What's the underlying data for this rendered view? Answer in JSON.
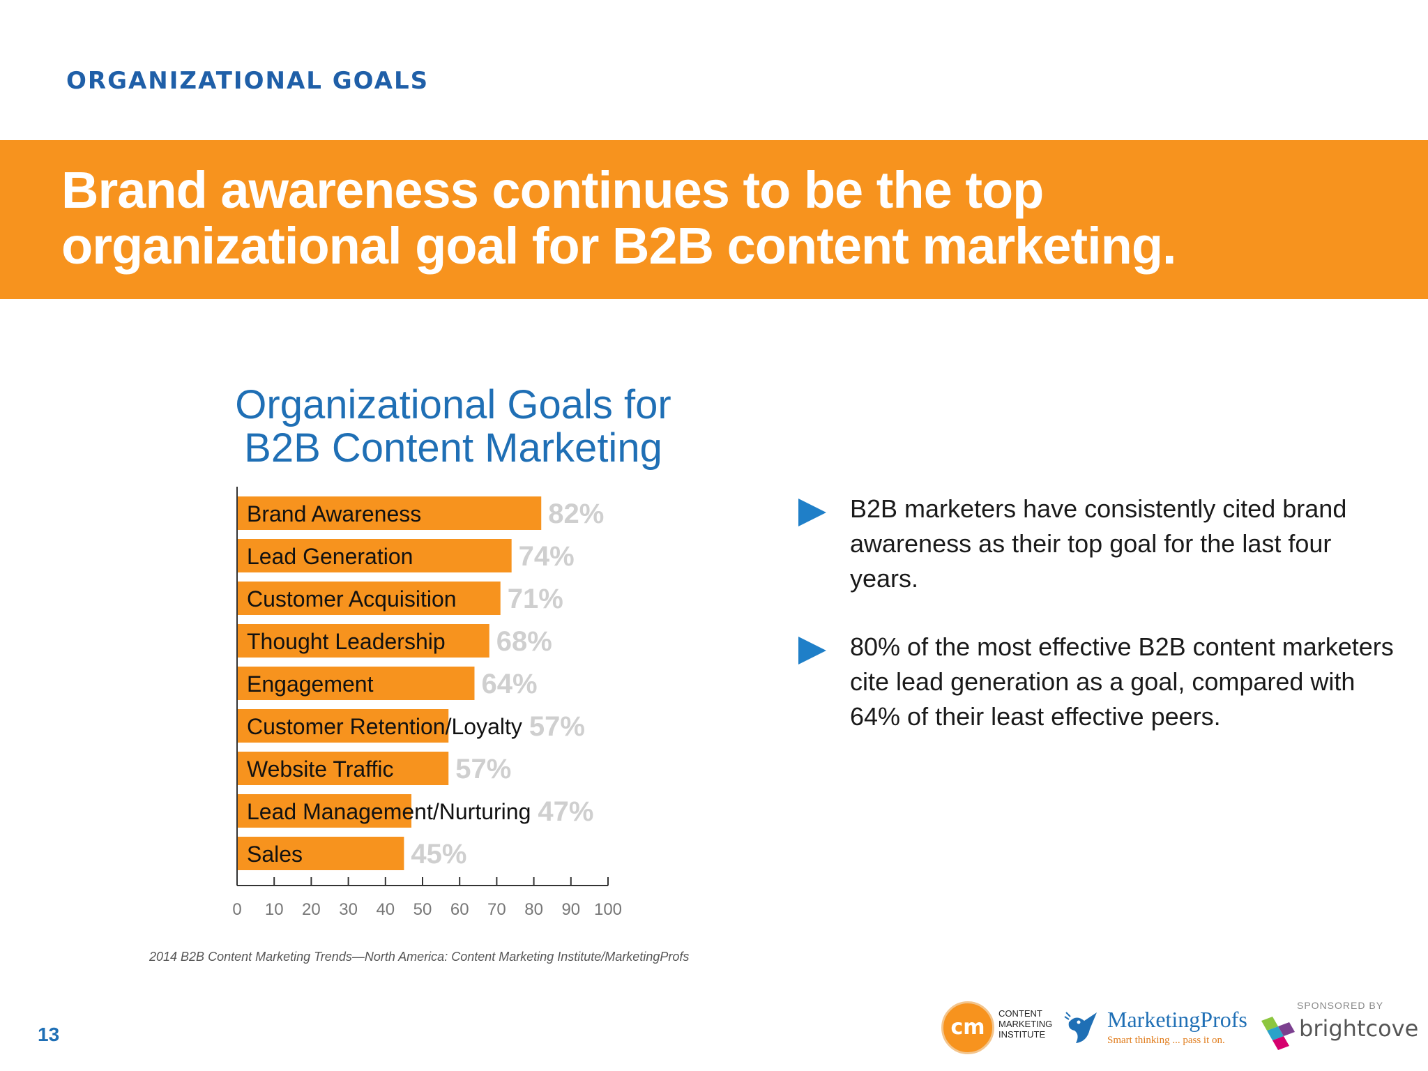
{
  "header": {
    "section_label": "ORGANIZATIONAL GOALS",
    "headline": "Brand awareness continues to be the top organizational goal for B2B content marketing."
  },
  "chart_data": {
    "type": "bar",
    "orientation": "horizontal",
    "title": "Organizational Goals for B2B Content Marketing",
    "title_lines": [
      "Organizational Goals for",
      "B2B Content Marketing"
    ],
    "categories": [
      "Brand Awareness",
      "Lead Generation",
      "Customer Acquisition",
      "Thought Leadership",
      "Engagement",
      "Customer Retention/Loyalty",
      "Website Traffic",
      "Lead Management/Nurturing",
      "Sales"
    ],
    "values": [
      82,
      74,
      71,
      68,
      64,
      57,
      57,
      47,
      45
    ],
    "value_labels": [
      "82%",
      "74%",
      "71%",
      "68%",
      "64%",
      "57%",
      "57%",
      "47%",
      "45%"
    ],
    "xlim": [
      0,
      100
    ],
    "x_ticks": [
      "0",
      "10",
      "20",
      "30",
      "40",
      "50",
      "60",
      "70",
      "80",
      "90",
      "100"
    ],
    "grid": false,
    "colors": {
      "bar": "#f7931e",
      "value_label": "#cfcfcf",
      "axis": "#333333"
    }
  },
  "bullets": [
    {
      "text": "B2B marketers have consistently cited brand awareness as their top goal for the last four years."
    },
    {
      "text": "80% of the most effective B2B content marketers cite lead generation as a goal, compared with 64% of their least effective peers."
    }
  ],
  "source": "2014 B2B Content Marketing Trends—North America: Content Marketing Institute/MarketingProfs",
  "page_number": "13",
  "logos": {
    "cmi_mark": "cm",
    "cmi_lines": [
      "CONTENT",
      "MARKETING",
      "INSTITUTE"
    ],
    "marketingprofs_name": "MarketingProfs",
    "marketingprofs_tagline": "Smart thinking ... pass it on.",
    "sponsored_by": "SPONSORED BY",
    "brightcove_name": "brightcove"
  },
  "colors": {
    "banner": "#f7931e",
    "accent_blue": "#1f6fb5",
    "bullet_arrow": "#1f7fc8"
  }
}
